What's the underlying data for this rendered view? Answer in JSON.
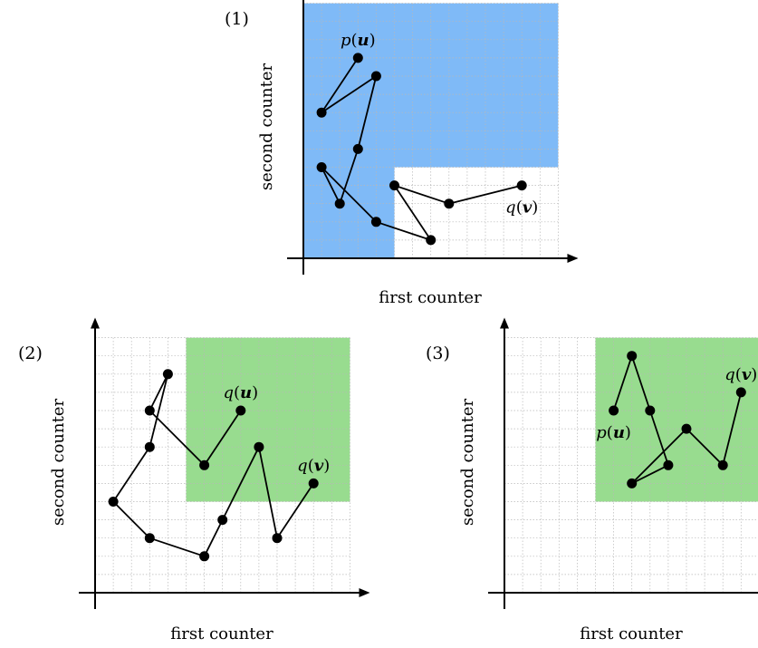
{
  "colors": {
    "blue_region": "#7fbaf7",
    "green_region": "#98dc8f",
    "path": "#000000"
  },
  "panels": [
    {
      "id": "1",
      "label": "(1)",
      "xlabel": "first counter",
      "ylabel": "second counter",
      "region_color": "blue_region",
      "region": [
        [
          0,
          0
        ],
        [
          5,
          0
        ],
        [
          5,
          5
        ],
        [
          14,
          5
        ],
        [
          14,
          14
        ],
        [
          0,
          14
        ]
      ],
      "path": [
        [
          3,
          11
        ],
        [
          1,
          8
        ],
        [
          4,
          10
        ],
        [
          3,
          6
        ],
        [
          2,
          3
        ],
        [
          1,
          5
        ],
        [
          4,
          2
        ],
        [
          7,
          1
        ],
        [
          5,
          4
        ],
        [
          8,
          3
        ],
        [
          12,
          4
        ]
      ],
      "labels": [
        {
          "text": "p(u)",
          "at": [
            3,
            11
          ],
          "pos": "above"
        },
        {
          "text": "q(v)",
          "at": [
            12,
            4
          ],
          "pos": "below"
        }
      ]
    },
    {
      "id": "2",
      "label": "(2)",
      "xlabel": "first counter",
      "ylabel": "second counter",
      "region_color": "green_region",
      "region": [
        [
          5,
          5
        ],
        [
          14,
          5
        ],
        [
          14,
          14
        ],
        [
          5,
          14
        ]
      ],
      "path": [
        [
          8,
          10
        ],
        [
          6,
          7
        ],
        [
          3,
          10
        ],
        [
          4,
          12
        ],
        [
          3,
          8
        ],
        [
          1,
          5
        ],
        [
          3,
          3
        ],
        [
          6,
          2
        ],
        [
          7,
          4
        ],
        [
          9,
          8
        ],
        [
          10,
          3
        ],
        [
          12,
          6
        ]
      ],
      "labels": [
        {
          "text": "q(u)",
          "at": [
            8,
            10
          ],
          "pos": "above"
        },
        {
          "text": "q(v)",
          "at": [
            12,
            6
          ],
          "pos": "above"
        }
      ]
    },
    {
      "id": "3",
      "label": "(3)",
      "xlabel": "first counter",
      "ylabel": "second counter",
      "region_color": "green_region",
      "region": [
        [
          5,
          5
        ],
        [
          14,
          5
        ],
        [
          14,
          14
        ],
        [
          5,
          14
        ]
      ],
      "path": [
        [
          6,
          10
        ],
        [
          7,
          13
        ],
        [
          8,
          10
        ],
        [
          9,
          7
        ],
        [
          7,
          6
        ],
        [
          10,
          9
        ],
        [
          12,
          7
        ],
        [
          13,
          11
        ]
      ],
      "labels": [
        {
          "text": "p(u)",
          "at": [
            6,
            10
          ],
          "pos": "below"
        },
        {
          "text": "q(v)",
          "at": [
            13,
            11
          ],
          "pos": "above"
        }
      ]
    }
  ]
}
